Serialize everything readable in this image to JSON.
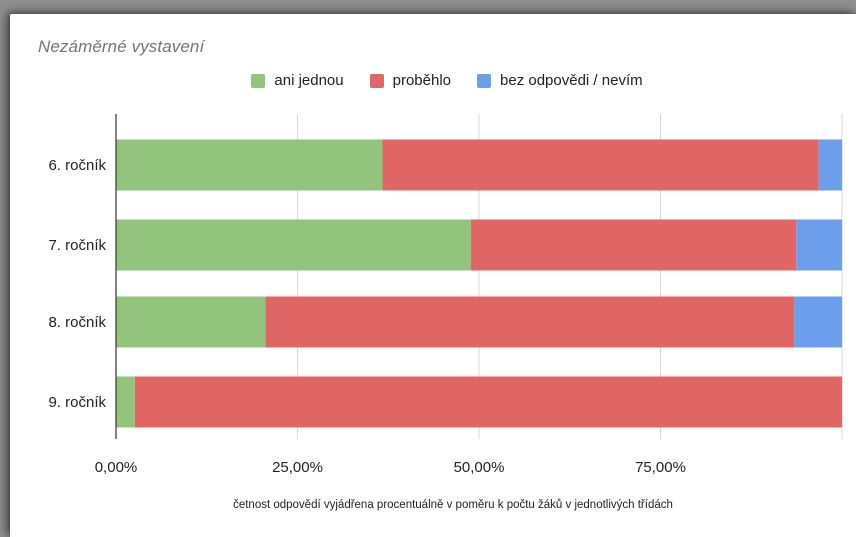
{
  "colors": {
    "ani_jednou": "#93c47d",
    "probehlo": "#e06666",
    "bez_odpovedi": "#6d9eeb",
    "grid": "#d9d9d9",
    "axis": "#333333"
  },
  "chart_data": {
    "type": "bar",
    "orientation": "horizontal",
    "stacked": true,
    "title": "Nezáměrné vystavení",
    "xlabel": "četnost odpovědí vyjádřena procentuálně v poměru k počtu žáků v jednotlivých třídách",
    "ylabel": "",
    "xlim": [
      0,
      1
    ],
    "x_ticks": [
      {
        "value": 0,
        "label": "0,00%"
      },
      {
        "value": 0.25,
        "label": "25,00%"
      },
      {
        "value": 0.5,
        "label": "50,00%"
      },
      {
        "value": 0.75,
        "label": "75,00%"
      }
    ],
    "categories": [
      "6. ročník",
      "7. ročník",
      "8. ročník",
      "9. ročník"
    ],
    "series": [
      {
        "name": "ani jednou",
        "color_key": "ani_jednou",
        "values": [
          0.367,
          0.489,
          0.206,
          0.026
        ]
      },
      {
        "name": "proběhlo",
        "color_key": "probehlo",
        "values": [
          0.601,
          0.448,
          0.728,
          0.974
        ]
      },
      {
        "name": "bez odpovědi / nevím",
        "color_key": "bez_odpovedi",
        "values": [
          0.032,
          0.063,
          0.066,
          0.0
        ]
      }
    ],
    "legend_position": "top",
    "grid": true
  }
}
